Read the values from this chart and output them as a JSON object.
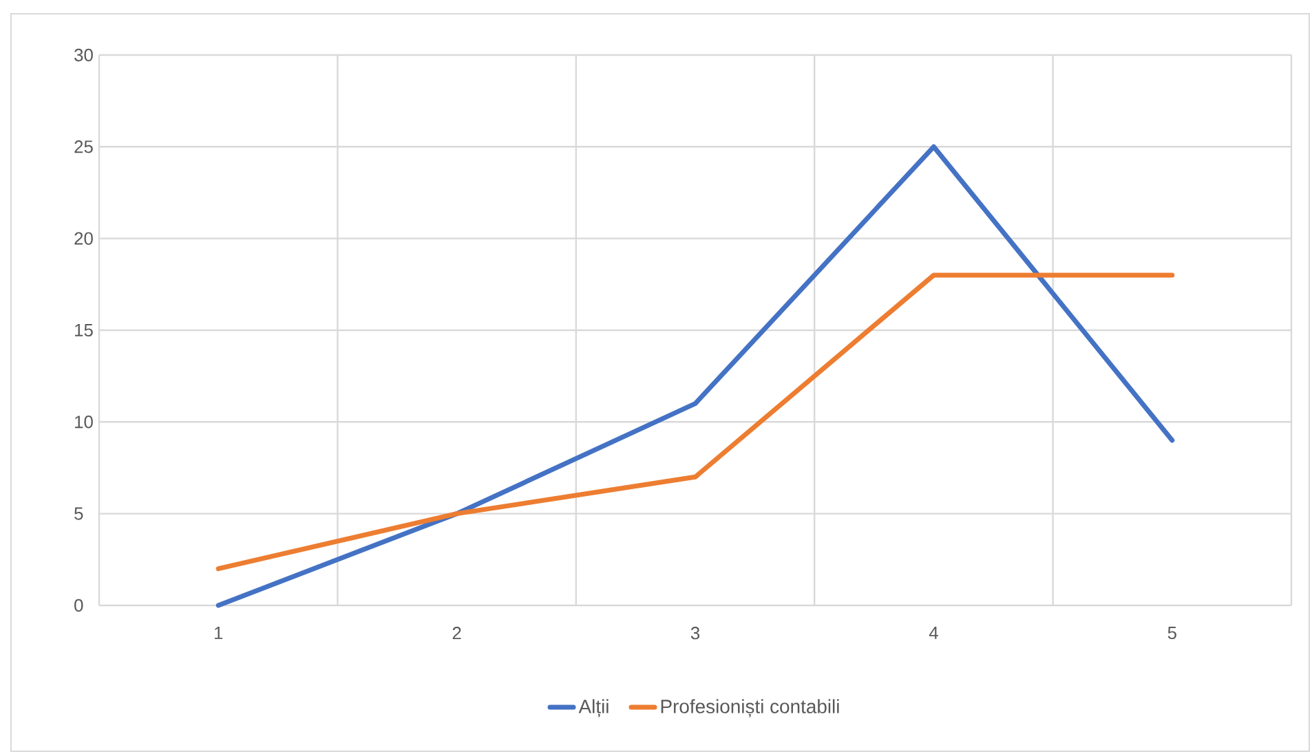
{
  "chart_data": {
    "type": "line",
    "categories": [
      "1",
      "2",
      "3",
      "4",
      "5"
    ],
    "series": [
      {
        "name": "Alții",
        "color": "#4472c4",
        "values": [
          0,
          5,
          11,
          25,
          9
        ]
      },
      {
        "name": "Profesioniști contabili",
        "color": "#ed7d31",
        "values": [
          2,
          5,
          7,
          18,
          18
        ]
      }
    ],
    "ylim": [
      0,
      30
    ],
    "yticks": [
      0,
      5,
      10,
      15,
      20,
      25,
      30
    ],
    "grid": true,
    "legend": "bottom",
    "marker": "none",
    "line_style": "solid"
  }
}
